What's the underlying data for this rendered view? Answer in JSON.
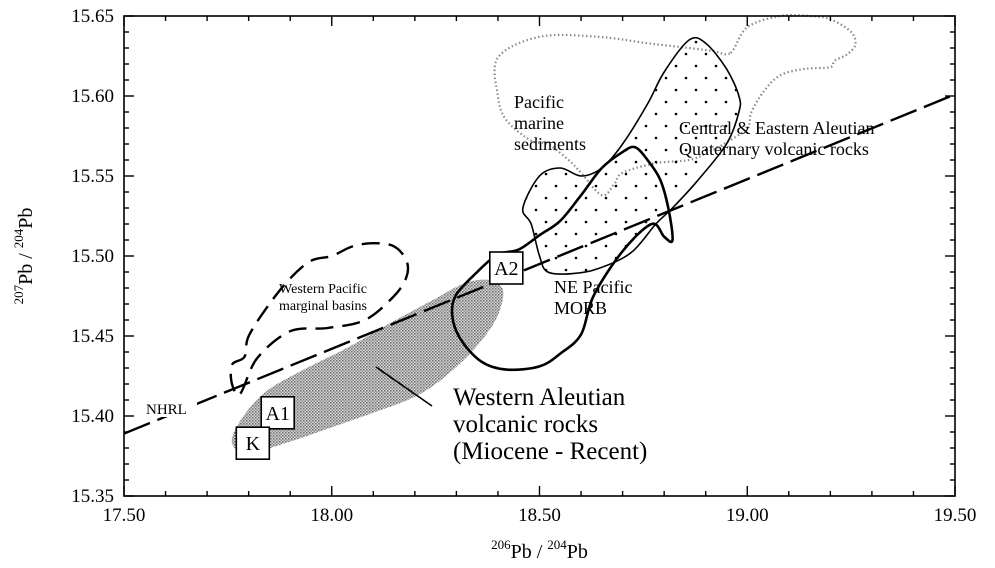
{
  "chart_data": {
    "type": "scatter",
    "xlabel_parts": {
      "sup1": "206",
      "main1": "Pb / ",
      "sup2": "204",
      "main2": "Pb"
    },
    "ylabel_parts": {
      "sup1": "207",
      "main1": "Pb / ",
      "sup2": "204",
      "main2": "Pb"
    },
    "xlim": [
      17.5,
      19.5
    ],
    "ylim": [
      15.35,
      15.65
    ],
    "xticks": [
      "17.50",
      "18.00",
      "18.50",
      "19.00",
      "19.50"
    ],
    "yticks": [
      "15.35",
      "15.40",
      "15.45",
      "15.50",
      "15.55",
      "15.60",
      "15.65"
    ],
    "grid": false,
    "nhrl": {
      "label": "NHRL",
      "x": [
        17.5,
        19.5
      ],
      "y": [
        15.389,
        15.601
      ]
    },
    "fields": [
      {
        "name": "pacific-marine-sediments",
        "lines": [
          "Pacific",
          "marine",
          "sediments"
        ],
        "style": "dotted",
        "x": [
          18.96,
          19.0,
          19.08,
          19.15,
          19.2,
          19.25,
          19.26,
          19.24,
          19.21,
          19.2,
          19.14,
          19.08,
          19.04,
          19.01,
          19.0,
          18.95,
          18.9,
          18.86,
          18.78,
          18.7,
          18.68,
          18.65,
          18.6,
          18.57,
          18.52,
          18.48,
          18.42,
          18.4,
          18.4,
          18.5,
          18.64,
          18.76,
          18.86,
          18.92,
          18.96
        ],
        "y": [
          15.627,
          15.643,
          15.65,
          15.65,
          15.648,
          15.64,
          15.632,
          15.626,
          15.622,
          15.618,
          15.617,
          15.613,
          15.603,
          15.59,
          15.58,
          15.571,
          15.564,
          15.56,
          15.558,
          15.552,
          15.545,
          15.538,
          15.552,
          15.56,
          15.57,
          15.572,
          15.585,
          15.6,
          15.624,
          15.637,
          15.637,
          15.633,
          15.63,
          15.628,
          15.627
        ]
      },
      {
        "name": "central-eastern-aleutian",
        "lines": [
          "Central & Eastern Aleutian",
          "Quaternary volcanic rocks"
        ],
        "style": "solid-dotfill",
        "x": [
          18.86,
          18.9,
          18.95,
          18.98,
          18.98,
          18.95,
          18.88,
          18.82,
          18.78,
          18.72,
          18.64,
          18.58,
          18.52,
          18.5,
          18.48,
          18.46,
          18.5,
          18.55,
          18.6,
          18.65,
          18.7,
          18.76,
          18.8,
          18.86
        ],
        "y": [
          15.635,
          15.633,
          15.617,
          15.6,
          15.59,
          15.57,
          15.547,
          15.53,
          15.52,
          15.502,
          15.492,
          15.489,
          15.49,
          15.5,
          15.52,
          15.53,
          15.55,
          15.555,
          15.55,
          15.555,
          15.57,
          15.595,
          15.615,
          15.635
        ]
      },
      {
        "name": "ne-pacific-morb",
        "lines": [
          "NE Pacific",
          "MORB"
        ],
        "style": "solid-bold",
        "x": [
          18.82,
          18.8,
          18.77,
          18.7,
          18.63,
          18.6,
          18.55,
          18.5,
          18.42,
          18.36,
          18.31,
          18.29,
          18.3,
          18.35,
          18.4,
          18.45,
          18.5,
          18.55,
          18.6,
          18.65,
          18.7,
          18.73,
          18.76,
          18.79,
          18.81,
          18.82
        ],
        "y": [
          15.51,
          15.512,
          15.52,
          15.503,
          15.475,
          15.451,
          15.439,
          15.431,
          15.429,
          15.434,
          15.448,
          15.463,
          15.476,
          15.49,
          15.501,
          15.504,
          15.513,
          15.522,
          15.538,
          15.555,
          15.565,
          15.568,
          15.56,
          15.548,
          15.53,
          15.51
        ]
      },
      {
        "name": "western-pacific-marginal-basins",
        "lines": [
          "Western Pacific",
          "marginal basins"
        ],
        "style": "dashed",
        "x": [
          17.78,
          17.82,
          17.9,
          17.99,
          18.08,
          18.15,
          18.18,
          18.18,
          18.15,
          18.1,
          18.05,
          18.0,
          17.95,
          17.9,
          17.85,
          17.8,
          17.79,
          17.76,
          17.76,
          17.78
        ],
        "y": [
          15.414,
          15.436,
          15.453,
          15.455,
          15.46,
          15.475,
          15.487,
          15.497,
          15.506,
          15.508,
          15.506,
          15.5,
          15.497,
          15.486,
          15.47,
          15.45,
          15.437,
          15.432,
          15.42,
          15.414
        ]
      },
      {
        "name": "western-aleutian",
        "lines": [
          "Western Aleutian",
          "volcanic rocks",
          "(Miocene - Recent)"
        ],
        "style": "stipple",
        "x": [
          17.76,
          17.8,
          17.9,
          18.0,
          18.1,
          18.2,
          18.27,
          18.34,
          18.39,
          18.41,
          18.41,
          18.38,
          18.32,
          18.24,
          18.14,
          18.04,
          17.94,
          17.84,
          17.78,
          17.76
        ],
        "y": [
          15.383,
          15.377,
          15.384,
          15.393,
          15.402,
          15.412,
          15.424,
          15.441,
          15.458,
          15.471,
          15.48,
          15.485,
          15.483,
          15.472,
          15.458,
          15.443,
          15.43,
          15.415,
          15.397,
          15.383
        ]
      }
    ],
    "samples": [
      {
        "label": "A2",
        "x": 18.42,
        "y": 15.4925
      },
      {
        "label": "A1",
        "x": 17.87,
        "y": 15.402
      },
      {
        "label": "K",
        "x": 17.81,
        "y": 15.383
      }
    ]
  }
}
